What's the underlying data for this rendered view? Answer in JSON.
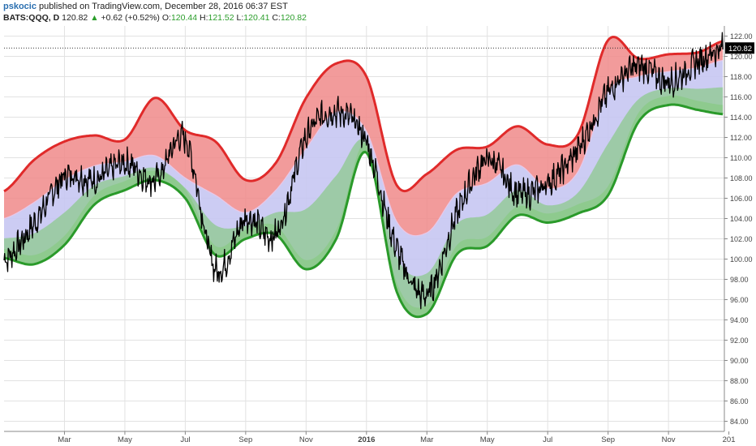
{
  "header": {
    "author": "pskocic",
    "published_text": " published on TradingView.com, December 28, 2016 06:37 EST",
    "symbol": "BATS:QQQ, D",
    "last_price": "120.82",
    "change_arrow": "▲",
    "change": "+0.62 (+0.52%)",
    "open_label": "O:",
    "open_value": "120.44",
    "high_label": "H:",
    "high_value": "121.52",
    "low_label": "L:",
    "low_value": "120.41",
    "close_label": "C:",
    "close_value": "120.82"
  },
  "colors": {
    "upper_band": "#f08a8a",
    "upper_edge": "#e02a2a",
    "mid_band": "#c6c6f2",
    "lower_band": "#8ec98e",
    "lower_edge": "#2a9a2a",
    "price_line": "#000000",
    "grid": "#e2e2e2",
    "last_price_tag": "#000000"
  },
  "chart_data": {
    "type": "line",
    "y_range": [
      83,
      123
    ],
    "y_ticks": [
      "84.00",
      "86.00",
      "88.00",
      "90.00",
      "92.00",
      "94.00",
      "96.00",
      "98.00",
      "100.00",
      "102.00",
      "104.00",
      "106.00",
      "108.00",
      "110.00",
      "112.00",
      "114.00",
      "116.00",
      "118.00",
      "120.00",
      "122.00"
    ],
    "x_tick_labels": [
      "Mar",
      "May",
      "Jul",
      "Sep",
      "Nov",
      "2016",
      "Mar",
      "May",
      "Jul",
      "Sep",
      "Nov",
      "201"
    ],
    "x_tick_positions": [
      2.0,
      4.0,
      6.0,
      8.0,
      10.0,
      12.0,
      14.0,
      16.0,
      18.0,
      20.0,
      22.0,
      24.0
    ],
    "x_range": [
      0.0,
      23.85
    ],
    "last_price_label": "120.82",
    "x": [
      0,
      1,
      2,
      3,
      4,
      5,
      6,
      7,
      8,
      9,
      10,
      11,
      12,
      13,
      14,
      15,
      16,
      17,
      18,
      19,
      20,
      21,
      22,
      23,
      23.8
    ],
    "series": [
      {
        "values": [
          106.7,
          109.8,
          111.6,
          112.2,
          111.8,
          115.9,
          112.7,
          111.6,
          107.8,
          109.5,
          115.9,
          119.3,
          118.0,
          107.3,
          108.4,
          110.8,
          111.1,
          113.1,
          111.3,
          112.3,
          121.6,
          119.8,
          120.2,
          120.4,
          121.5
        ]
      },
      {
        "values": [
          104.0,
          105.6,
          107.8,
          109.2,
          109.6,
          110.2,
          108.0,
          106.3,
          104.6,
          106.8,
          110.9,
          114.5,
          112.6,
          103.7,
          102.6,
          106.5,
          107.5,
          109.3,
          107.0,
          108.6,
          116.5,
          118.0,
          118.5,
          118.9,
          119.6
        ]
      },
      {
        "values": [
          100.1,
          99.5,
          101.4,
          105.4,
          106.8,
          107.8,
          106.0,
          100.4,
          102.0,
          102.4,
          99.0,
          102.0,
          110.5,
          96.8,
          94.6,
          100.5,
          101.3,
          104.3,
          103.6,
          104.5,
          106.3,
          113.5,
          115.2,
          114.7,
          114.3
        ]
      },
      {
        "values": [
          99.9,
          103.5,
          108.1,
          107.8,
          109.5,
          107.8,
          111.8,
          99.0,
          104.0,
          102.5,
          112.0,
          114.5,
          111.5,
          101.0,
          96.5,
          104.5,
          109.8,
          106.5,
          107.5,
          110.8,
          116.4,
          119.0,
          117.5,
          119.5,
          120.8
        ]
      }
    ]
  }
}
